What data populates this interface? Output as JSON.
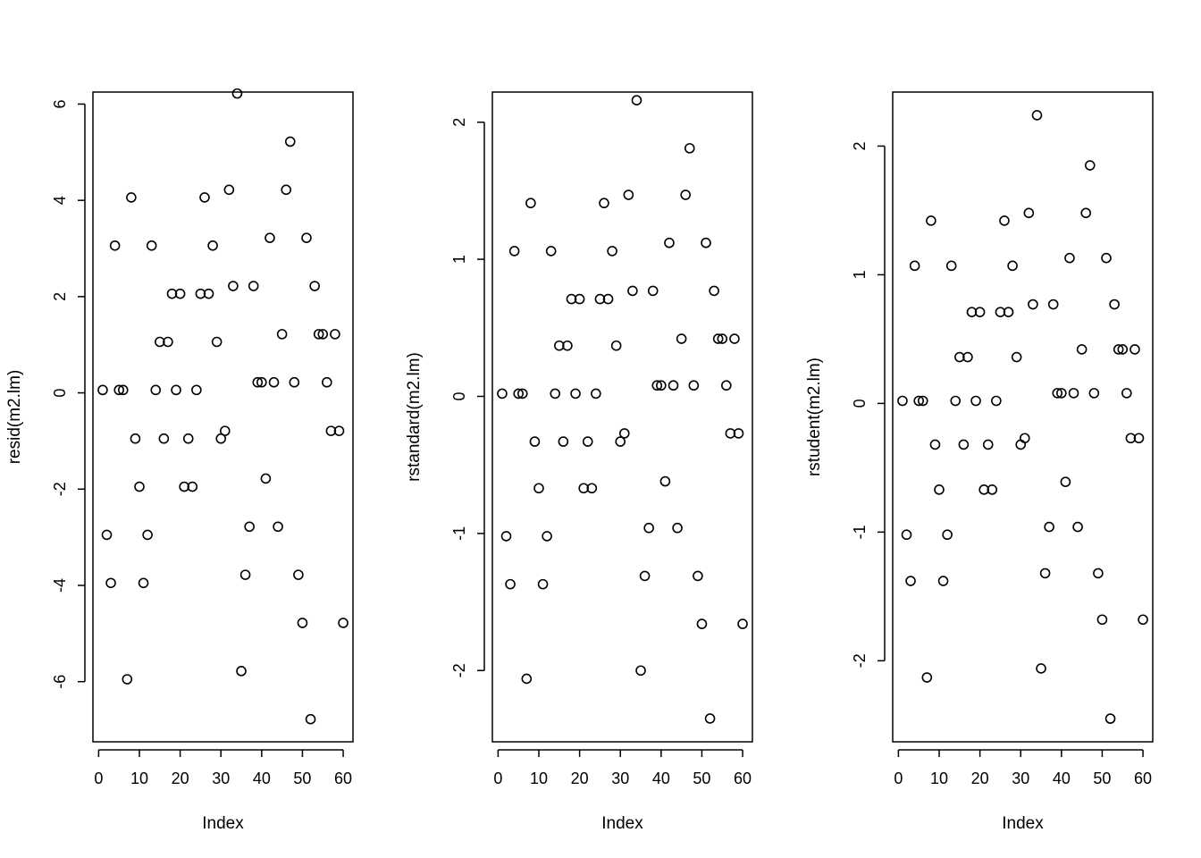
{
  "chart_data": [
    {
      "type": "scatter",
      "xlabel": "Index",
      "ylabel": "resid(m2.lm)",
      "xlim": [
        -1.4,
        62.4
      ],
      "ylim": [
        -7.25,
        6.25
      ],
      "xticks": [
        0,
        10,
        20,
        30,
        40,
        50,
        60
      ],
      "yticks": [
        -6,
        -4,
        -2,
        0,
        2,
        4,
        6
      ],
      "x": [
        1,
        2,
        3,
        4,
        5,
        6,
        7,
        8,
        9,
        10,
        11,
        12,
        13,
        14,
        15,
        16,
        17,
        18,
        19,
        20,
        21,
        22,
        23,
        24,
        25,
        26,
        27,
        28,
        29,
        30,
        31,
        32,
        33,
        34,
        35,
        36,
        37,
        38,
        39,
        40,
        41,
        42,
        43,
        44,
        45,
        46,
        47,
        48,
        49,
        50,
        51,
        52,
        53,
        54,
        55,
        56,
        57,
        58,
        59,
        60
      ],
      "y": [
        0.06,
        -2.95,
        -3.95,
        3.06,
        0.06,
        0.06,
        -5.95,
        4.06,
        -0.95,
        -1.95,
        -3.95,
        -2.95,
        3.06,
        0.06,
        1.06,
        -0.95,
        1.06,
        2.06,
        0.06,
        2.06,
        -1.95,
        -0.95,
        -1.95,
        0.06,
        2.06,
        4.06,
        2.06,
        3.06,
        1.06,
        -0.95,
        -0.79,
        4.22,
        2.22,
        6.22,
        -5.78,
        -3.78,
        -2.78,
        2.22,
        0.22,
        0.22,
        -1.78,
        3.22,
        0.22,
        -2.78,
        1.22,
        4.22,
        5.22,
        0.22,
        -3.78,
        -4.78,
        3.22,
        -6.78,
        2.22,
        1.22,
        1.22,
        0.22,
        -0.79,
        1.22,
        -0.79,
        -4.78
      ]
    },
    {
      "type": "scatter",
      "xlabel": "Index",
      "ylabel": "rstandard(m2.lm)",
      "xlim": [
        -1.4,
        62.4
      ],
      "ylim": [
        -2.52,
        2.22
      ],
      "xticks": [
        0,
        10,
        20,
        30,
        40,
        50,
        60
      ],
      "yticks": [
        -2,
        -1,
        0,
        1,
        2
      ],
      "x": [
        1,
        2,
        3,
        4,
        5,
        6,
        7,
        8,
        9,
        10,
        11,
        12,
        13,
        14,
        15,
        16,
        17,
        18,
        19,
        20,
        21,
        22,
        23,
        24,
        25,
        26,
        27,
        28,
        29,
        30,
        31,
        32,
        33,
        34,
        35,
        36,
        37,
        38,
        39,
        40,
        41,
        42,
        43,
        44,
        45,
        46,
        47,
        48,
        49,
        50,
        51,
        52,
        53,
        54,
        55,
        56,
        57,
        58,
        59,
        60
      ],
      "y": [
        0.02,
        -1.02,
        -1.37,
        1.06,
        0.02,
        0.02,
        -2.06,
        1.41,
        -0.33,
        -0.67,
        -1.37,
        -1.02,
        1.06,
        0.02,
        0.37,
        -0.33,
        0.37,
        0.71,
        0.02,
        0.71,
        -0.67,
        -0.33,
        -0.67,
        0.02,
        0.71,
        1.41,
        0.71,
        1.06,
        0.37,
        -0.33,
        -0.27,
        1.47,
        0.77,
        2.16,
        -2.0,
        -1.31,
        -0.96,
        0.77,
        0.08,
        0.08,
        -0.62,
        1.12,
        0.08,
        -0.96,
        0.42,
        1.47,
        1.81,
        0.08,
        -1.31,
        -1.66,
        1.12,
        -2.35,
        0.77,
        0.42,
        0.42,
        0.08,
        -0.27,
        0.42,
        -0.27,
        -1.66
      ]
    },
    {
      "type": "scatter",
      "xlabel": "Index",
      "ylabel": "rstudent(m2.lm)",
      "xlim": [
        -1.4,
        62.4
      ],
      "ylim": [
        -2.63,
        2.42
      ],
      "xticks": [
        0,
        10,
        20,
        30,
        40,
        50,
        60
      ],
      "yticks": [
        -2,
        -1,
        0,
        1,
        2
      ],
      "x": [
        1,
        2,
        3,
        4,
        5,
        6,
        7,
        8,
        9,
        10,
        11,
        12,
        13,
        14,
        15,
        16,
        17,
        18,
        19,
        20,
        21,
        22,
        23,
        24,
        25,
        26,
        27,
        28,
        29,
        30,
        31,
        32,
        33,
        34,
        35,
        36,
        37,
        38,
        39,
        40,
        41,
        42,
        43,
        44,
        45,
        46,
        47,
        48,
        49,
        50,
        51,
        52,
        53,
        54,
        55,
        56,
        57,
        58,
        59,
        60
      ],
      "y": [
        0.02,
        -1.02,
        -1.38,
        1.07,
        0.02,
        0.02,
        -2.13,
        1.42,
        -0.32,
        -0.67,
        -1.38,
        -1.02,
        1.07,
        0.02,
        0.36,
        -0.32,
        0.36,
        0.71,
        0.02,
        0.71,
        -0.67,
        -0.32,
        -0.67,
        0.02,
        0.71,
        1.42,
        0.71,
        1.07,
        0.36,
        -0.32,
        -0.27,
        1.48,
        0.77,
        2.24,
        -2.06,
        -1.32,
        -0.96,
        0.77,
        0.08,
        0.08,
        -0.61,
        1.13,
        0.08,
        -0.96,
        0.42,
        1.48,
        1.85,
        0.08,
        -1.32,
        -1.68,
        1.13,
        -2.45,
        0.77,
        0.42,
        0.42,
        0.08,
        -0.27,
        0.42,
        -0.27,
        -1.68
      ]
    }
  ]
}
